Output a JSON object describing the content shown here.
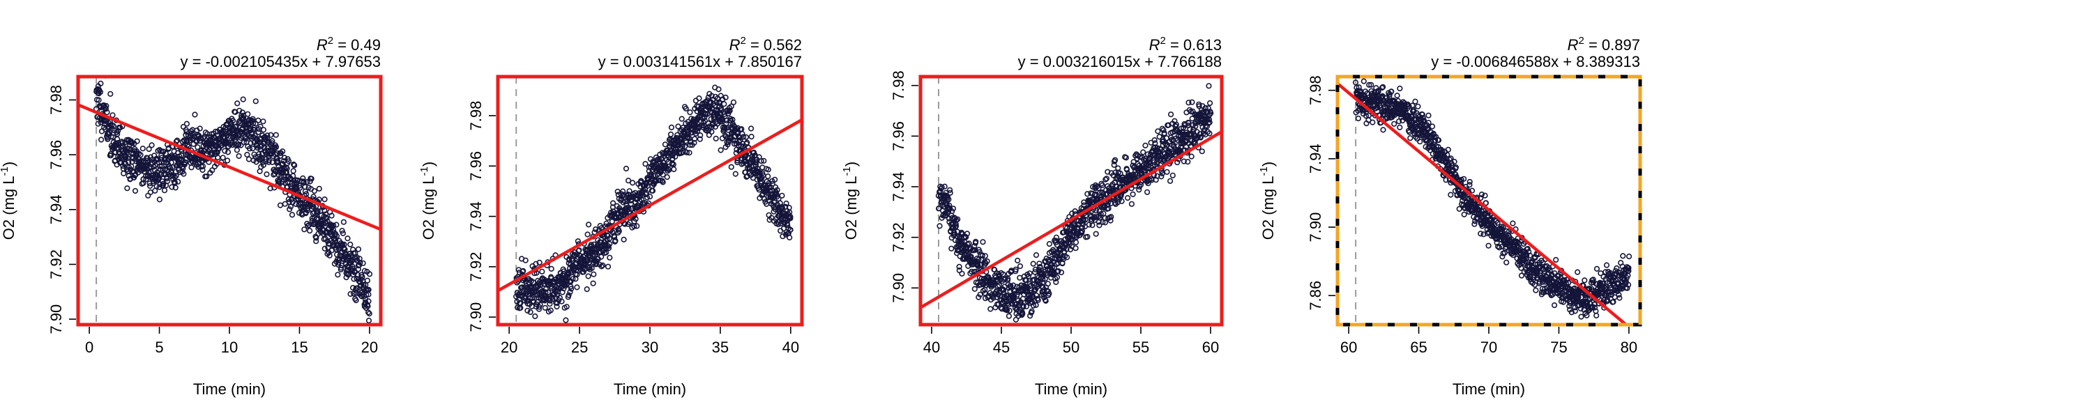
{
  "chart_data": [
    {
      "type": "scatter",
      "xlabel": "Time (min)",
      "ylabel": "O2 (mg L",
      "ylabel_sup": "-1",
      "xlim": [
        -0.8,
        20.8
      ],
      "ylim": [
        7.898,
        7.9885
      ],
      "xticks": [
        0,
        5,
        10,
        15,
        20
      ],
      "yticks": [
        7.9,
        7.92,
        7.94,
        7.96,
        7.98
      ],
      "r2_label": "R",
      "r2_sup": "2",
      "r2_value": "= 0.49",
      "equation": "y = -0.002105435x + 7.97653",
      "slope": -0.002105435,
      "intercept": 7.97653,
      "vline_x": 0.5,
      "border": "solid",
      "border_color": "#ee1c1c",
      "profile": [
        [
          0.5,
          7.981
        ],
        [
          1,
          7.975
        ],
        [
          2,
          7.962
        ],
        [
          3,
          7.958
        ],
        [
          4,
          7.955
        ],
        [
          5,
          7.954
        ],
        [
          6,
          7.956
        ],
        [
          7,
          7.962
        ],
        [
          8,
          7.962
        ],
        [
          9,
          7.963
        ],
        [
          10,
          7.968
        ],
        [
          11,
          7.97
        ],
        [
          12,
          7.965
        ],
        [
          13,
          7.96
        ],
        [
          14,
          7.951
        ],
        [
          15,
          7.945
        ],
        [
          16,
          7.94
        ],
        [
          17,
          7.933
        ],
        [
          18,
          7.925
        ],
        [
          19,
          7.918
        ],
        [
          20,
          7.91
        ]
      ],
      "noise": 0.0045,
      "seed": 11
    },
    {
      "type": "scatter",
      "xlabel": "Time (min)",
      "ylabel": "O2 (mg L",
      "ylabel_sup": "-1",
      "xlim": [
        19.2,
        40.8
      ],
      "ylim": [
        7.897,
        7.9955
      ],
      "xticks": [
        20,
        25,
        30,
        35,
        40
      ],
      "yticks": [
        7.9,
        7.92,
        7.94,
        7.96,
        7.98
      ],
      "r2_label": "R",
      "r2_sup": "2",
      "r2_value": "= 0.562",
      "equation": "y = 0.003141561x + 7.850167",
      "slope": 0.003141561,
      "intercept": 7.850167,
      "vline_x": 20.5,
      "border": "solid",
      "border_color": "#ee1c1c",
      "profile": [
        [
          20.5,
          7.914
        ],
        [
          22,
          7.91
        ],
        [
          23,
          7.912
        ],
        [
          24,
          7.915
        ],
        [
          25,
          7.92
        ],
        [
          26,
          7.926
        ],
        [
          27,
          7.933
        ],
        [
          28,
          7.943
        ],
        [
          29,
          7.945
        ],
        [
          30,
          7.953
        ],
        [
          31,
          7.962
        ],
        [
          32,
          7.968
        ],
        [
          33,
          7.976
        ],
        [
          34,
          7.982
        ],
        [
          35,
          7.98
        ],
        [
          36,
          7.972
        ],
        [
          37,
          7.962
        ],
        [
          38,
          7.953
        ],
        [
          39,
          7.945
        ],
        [
          40,
          7.935
        ]
      ],
      "noise": 0.0045,
      "seed": 23
    },
    {
      "type": "scatter",
      "xlabel": "Time (min)",
      "ylabel": "O2 (mg L",
      "ylabel_sup": "-1",
      "xlim": [
        39.2,
        60.8
      ],
      "ylim": [
        7.8855,
        7.9835
      ],
      "xticks": [
        40,
        45,
        50,
        55,
        60
      ],
      "yticks": [
        7.9,
        7.92,
        7.94,
        7.96,
        7.98
      ],
      "r2_label": "R",
      "r2_sup": "2",
      "r2_value": "= 0.613",
      "equation": "y = 0.003216015x + 7.766188",
      "slope": 0.003216015,
      "intercept": 7.766188,
      "vline_x": 40.5,
      "border": "solid",
      "border_color": "#ee1c1c",
      "profile": [
        [
          40.5,
          7.934
        ],
        [
          41,
          7.932
        ],
        [
          42,
          7.918
        ],
        [
          43,
          7.91
        ],
        [
          44,
          7.902
        ],
        [
          45,
          7.898
        ],
        [
          46,
          7.897
        ],
        [
          47,
          7.898
        ],
        [
          48,
          7.903
        ],
        [
          49,
          7.912
        ],
        [
          50,
          7.922
        ],
        [
          51,
          7.929
        ],
        [
          52,
          7.934
        ],
        [
          53,
          7.938
        ],
        [
          54,
          7.942
        ],
        [
          55,
          7.946
        ],
        [
          56,
          7.95
        ],
        [
          57,
          7.955
        ],
        [
          58,
          7.96
        ],
        [
          59,
          7.964
        ],
        [
          60,
          7.968
        ]
      ],
      "noise": 0.0045,
      "seed": 37
    },
    {
      "type": "scatter",
      "xlabel": "Time (min)",
      "ylabel": "O2 (mg L",
      "ylabel_sup": "-1",
      "xlim": [
        59.2,
        80.8
      ],
      "ylim": [
        7.843,
        7.988
      ],
      "xticks": [
        60,
        65,
        70,
        75,
        80
      ],
      "yticks": [
        7.86,
        7.9,
        7.94,
        7.98
      ],
      "r2_label": "R",
      "r2_sup": "2",
      "r2_value": "= 0.897",
      "equation": "y = -0.006846588x + 8.389313",
      "slope": -0.006846588,
      "intercept": 8.389313,
      "vline_x": 60.5,
      "border": "dashed",
      "border_color": "#f5a623",
      "profile": [
        [
          60.5,
          7.976
        ],
        [
          62,
          7.972
        ],
        [
          63,
          7.97
        ],
        [
          64,
          7.966
        ],
        [
          65,
          7.96
        ],
        [
          66,
          7.95
        ],
        [
          67,
          7.936
        ],
        [
          68,
          7.922
        ],
        [
          69,
          7.912
        ],
        [
          70,
          7.902
        ],
        [
          71,
          7.894
        ],
        [
          72,
          7.886
        ],
        [
          73,
          7.878
        ],
        [
          74,
          7.87
        ],
        [
          75,
          7.864
        ],
        [
          76,
          7.86
        ],
        [
          77,
          7.858
        ],
        [
          78,
          7.862
        ],
        [
          79,
          7.868
        ],
        [
          80,
          7.872
        ]
      ],
      "noise": 0.005,
      "seed": 53
    }
  ]
}
